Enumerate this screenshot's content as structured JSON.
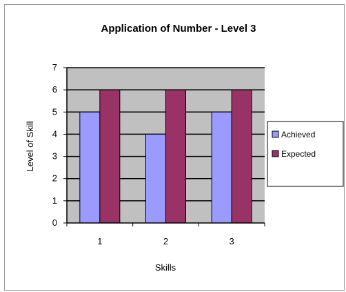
{
  "chart_data": {
    "type": "bar",
    "title": "Application of Number - Level 3",
    "xlabel": "Skills",
    "ylabel": "Level of Skill",
    "categories": [
      "1",
      "2",
      "3"
    ],
    "series": [
      {
        "name": "Achieved",
        "values": [
          5,
          4,
          5
        ],
        "color": "#9a9aff"
      },
      {
        "name": "Expected",
        "values": [
          6,
          6,
          6
        ],
        "color": "#993366"
      }
    ],
    "ylim": [
      0,
      7
    ],
    "yticks": [
      "0",
      "1",
      "2",
      "3",
      "4",
      "5",
      "6",
      "7"
    ],
    "grid": true,
    "plot_background": "#c0c0c0",
    "legend": "right"
  }
}
